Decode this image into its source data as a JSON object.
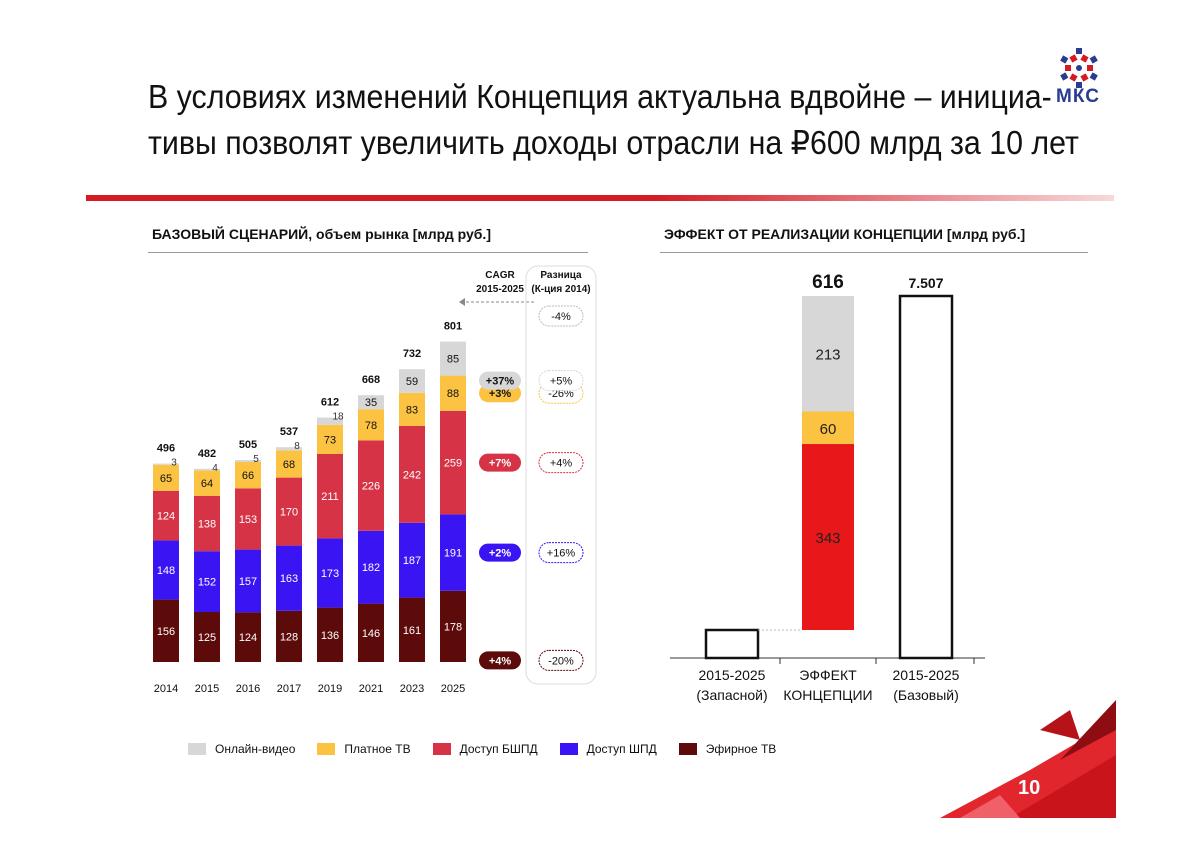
{
  "title": {
    "line1": "В условиях изменений Концепция актуальна вдвойне – инициа-",
    "line2": "тивы позволят увеличить доходы отрасли на ₽600 млрд за 10 лет"
  },
  "logo": {
    "text": "МКС"
  },
  "page_number": "10",
  "colors": {
    "online_video": "#d7d7d7",
    "paid_tv": "#fcc343",
    "broadband": "#d63446",
    "shpd": "#3a14f2",
    "terrestrial": "#5c0a0a",
    "rule": "#d41a23",
    "concept_red": "#e8171a"
  },
  "legend": [
    {
      "label": "Онлайн-видео",
      "color": "#d7d7d7"
    },
    {
      "label": "Платное ТВ",
      "color": "#fcc343"
    },
    {
      "label": "Доступ БШПД",
      "color": "#d63446"
    },
    {
      "label": "Доступ ШПД",
      "color": "#3a14f2"
    },
    {
      "label": "Эфирное ТВ",
      "color": "#5c0a0a"
    }
  ],
  "chart_data": [
    {
      "type": "bar",
      "stacked": true,
      "title": "БАЗОВЫЙ СЦЕНАРИЙ, объем рынка [млрд руб.]",
      "categories": [
        "2014",
        "2015",
        "2016",
        "2017",
        "2019",
        "2021",
        "2023",
        "2025"
      ],
      "totals": [
        "496",
        "482",
        "505",
        "537",
        "612",
        "668",
        "732",
        "801"
      ],
      "series": [
        {
          "name": "Эфирное ТВ",
          "color": "#5c0a0a",
          "values": [
            156,
            125,
            124,
            128,
            136,
            146,
            161,
            178
          ],
          "cagr": "+4%",
          "diff": "-20%"
        },
        {
          "name": "Доступ ШПД",
          "color": "#3a14f2",
          "values": [
            148,
            152,
            157,
            163,
            173,
            182,
            187,
            191
          ],
          "cagr": "+2%",
          "diff": "+16%"
        },
        {
          "name": "Доступ БШПД",
          "color": "#d63446",
          "values": [
            124,
            138,
            153,
            170,
            211,
            226,
            242,
            259
          ],
          "cagr": "+7%",
          "diff": "+4%"
        },
        {
          "name": "Платное ТВ",
          "color": "#fcc343",
          "values": [
            65,
            64,
            66,
            68,
            73,
            78,
            83,
            88
          ],
          "cagr": "+3%",
          "diff": "-26%"
        },
        {
          "name": "Онлайн-видео",
          "color": "#d7d7d7",
          "values": [
            3,
            4,
            5,
            8,
            18,
            35,
            59,
            85
          ],
          "cagr": "+37%",
          "diff": "+5%"
        }
      ],
      "total_diff": "-4%",
      "cagr_header": [
        "CAGR",
        "2015-2025"
      ],
      "diff_header": [
        "Разница",
        "(К-ция 2014)"
      ]
    },
    {
      "type": "bar",
      "subtype": "waterfall",
      "title": "ЭФФЕКТ ОТ РЕАЛИЗАЦИИ КОНЦЕПЦИИ [млрд руб.]",
      "categories": [
        [
          "2015-2025",
          "(Запасной)"
        ],
        [
          "ЭФФЕКТ",
          "КОНЦЕПЦИИ"
        ],
        [
          "2015-2025",
          "(Базовый)"
        ]
      ],
      "effect_total": "616",
      "effect_segments": [
        {
          "value": 343,
          "color": "#e8171a"
        },
        {
          "value": 60,
          "color": "#fcc343"
        },
        {
          "value": 213,
          "color": "#d7d7d7"
        }
      ],
      "base_total": "7.507"
    }
  ]
}
